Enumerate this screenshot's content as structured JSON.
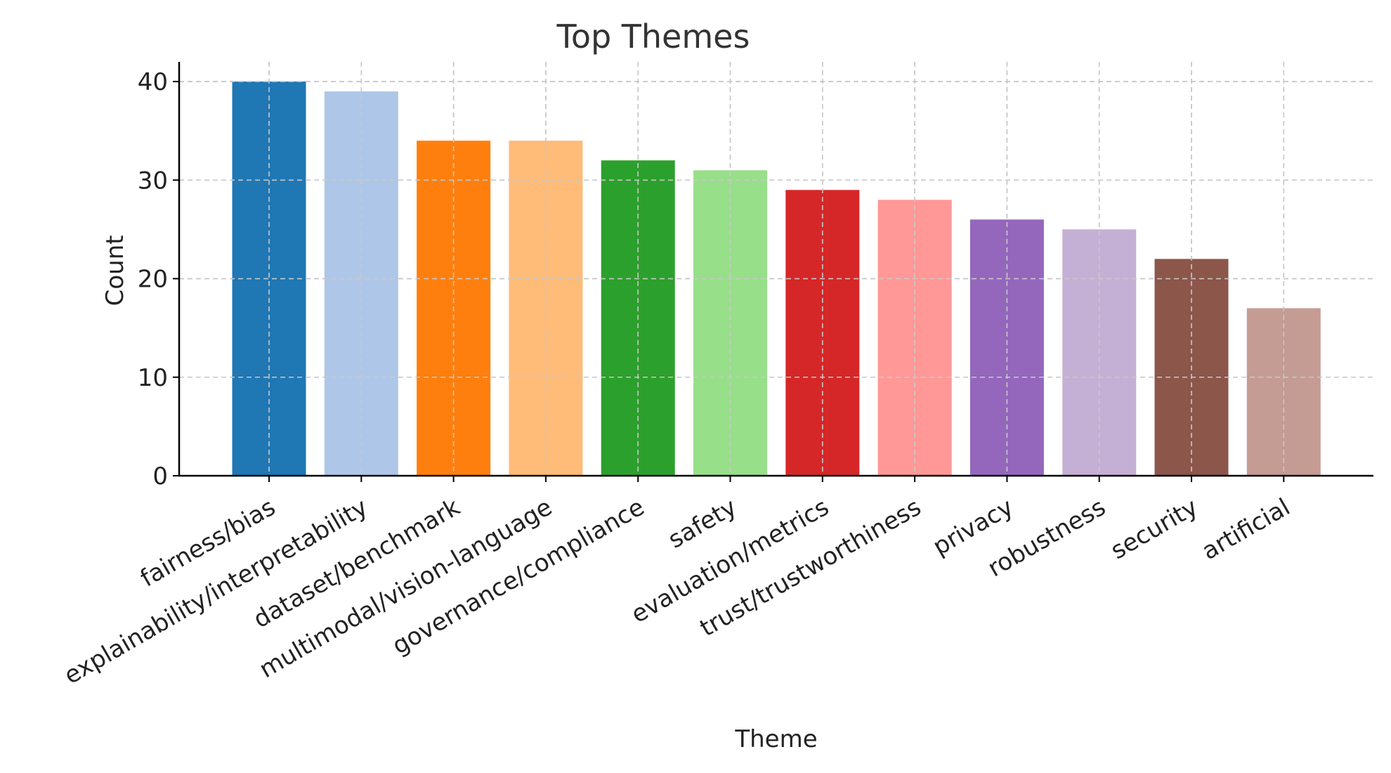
{
  "chart_data": {
    "type": "bar",
    "title": "Top Themes",
    "xlabel": "Theme",
    "ylabel": "Count",
    "ylim": [
      0,
      42
    ],
    "yticks": [
      0,
      10,
      20,
      30,
      40
    ],
    "grid": true,
    "categories": [
      "fairness/bias",
      "explainability/interpretability",
      "dataset/benchmark",
      "multimodal/vision-language",
      "governance/compliance",
      "safety",
      "evaluation/metrics",
      "trust/trustworthiness",
      "privacy",
      "robustness",
      "security",
      "artificial"
    ],
    "values": [
      40,
      39,
      34,
      34,
      32,
      31,
      29,
      28,
      26,
      25,
      22,
      17
    ],
    "colors": [
      "#1f77b4",
      "#aec7e8",
      "#ff7f0e",
      "#ffbb78",
      "#2ca02c",
      "#98df8a",
      "#d62728",
      "#ff9896",
      "#9467bd",
      "#c5b0d5",
      "#8c564b",
      "#c49c94"
    ]
  }
}
